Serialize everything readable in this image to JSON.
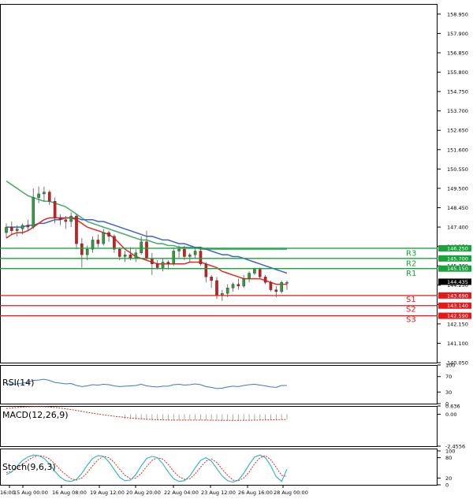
{
  "chart_data": [
    {
      "type": "candlestick",
      "y_ticks": [
        "158.950",
        "157.900",
        "156.850",
        "155.800",
        "154.750",
        "153.700",
        "152.650",
        "151.600",
        "150.550",
        "149.500",
        "148.450",
        "147.400",
        "146.350",
        "145.300",
        "144.250",
        "143.200",
        "142.150",
        "141.100",
        "140.050"
      ],
      "x_ticks": [
        "16:00",
        "15 Aug 00:00",
        "16 Aug 08:00",
        "19 Aug 12:00",
        "20 Aug 20:00",
        "22 Aug 04:00",
        "23 Aug 12:00",
        "26 Aug 16:00",
        "28 Aug 00:00"
      ],
      "ylim": [
        140.05,
        159.5
      ],
      "ohlc": [
        [
          147.1,
          147.6,
          146.8,
          147.4
        ],
        [
          147.4,
          147.7,
          147.0,
          147.2
        ],
        [
          147.2,
          147.5,
          146.9,
          147.3
        ],
        [
          147.3,
          147.6,
          147.0,
          147.5
        ],
        [
          147.5,
          147.8,
          147.2,
          147.4
        ],
        [
          147.4,
          149.5,
          147.3,
          149.0
        ],
        [
          149.0,
          149.6,
          148.7,
          149.2
        ],
        [
          149.2,
          149.6,
          148.8,
          149.3
        ],
        [
          149.3,
          149.4,
          148.6,
          148.8
        ],
        [
          148.8,
          149.0,
          147.6,
          147.9
        ],
        [
          147.9,
          148.1,
          147.5,
          147.8
        ],
        [
          147.8,
          148.0,
          147.3,
          147.7
        ],
        [
          147.7,
          148.2,
          147.4,
          148.0
        ],
        [
          148.0,
          148.1,
          146.2,
          146.5
        ],
        [
          146.5,
          146.8,
          145.2,
          145.9
        ],
        [
          145.9,
          146.4,
          145.6,
          146.2
        ],
        [
          146.2,
          146.9,
          146.0,
          146.7
        ],
        [
          146.7,
          147.0,
          146.3,
          146.5
        ],
        [
          146.5,
          147.3,
          146.4,
          147.1
        ],
        [
          147.1,
          147.2,
          146.6,
          146.9
        ],
        [
          146.9,
          147.0,
          146.0,
          146.2
        ],
        [
          146.2,
          146.3,
          145.6,
          145.8
        ],
        [
          145.8,
          146.1,
          145.5,
          145.9
        ],
        [
          145.9,
          146.3,
          145.6,
          145.7
        ],
        [
          145.7,
          146.2,
          145.5,
          146.0
        ],
        [
          146.0,
          146.9,
          145.9,
          146.6
        ],
        [
          146.6,
          147.2,
          145.6,
          145.7
        ],
        [
          145.7,
          146.0,
          144.8,
          145.4
        ],
        [
          145.4,
          145.6,
          145.1,
          145.2
        ],
        [
          145.2,
          145.7,
          145.0,
          145.5
        ],
        [
          145.5,
          145.6,
          145.1,
          145.4
        ],
        [
          145.4,
          146.3,
          145.3,
          146.1
        ],
        [
          146.1,
          146.4,
          145.7,
          146.2
        ],
        [
          146.2,
          146.4,
          145.6,
          145.8
        ],
        [
          145.8,
          146.0,
          145.5,
          145.9
        ],
        [
          145.9,
          146.3,
          145.7,
          146.1
        ],
        [
          146.1,
          146.3,
          145.3,
          145.4
        ],
        [
          145.4,
          145.5,
          144.4,
          144.7
        ],
        [
          144.7,
          144.8,
          144.1,
          144.5
        ],
        [
          144.5,
          144.7,
          143.5,
          143.7
        ],
        [
          143.7,
          144.0,
          143.4,
          143.8
        ],
        [
          143.8,
          144.3,
          143.6,
          144.1
        ],
        [
          144.1,
          144.4,
          143.9,
          144.3
        ],
        [
          144.3,
          144.6,
          144.0,
          144.2
        ],
        [
          144.2,
          144.8,
          144.1,
          144.6
        ],
        [
          144.6,
          145.0,
          144.4,
          144.9
        ],
        [
          144.9,
          145.2,
          144.8,
          145.1
        ],
        [
          145.1,
          145.2,
          144.6,
          144.7
        ],
        [
          144.7,
          144.8,
          144.3,
          144.4
        ],
        [
          144.4,
          144.5,
          143.9,
          144.0
        ],
        [
          144.0,
          144.2,
          143.6,
          143.9
        ],
        [
          143.9,
          144.5,
          143.8,
          144.4
        ],
        [
          144.4,
          144.5,
          144.0,
          144.4
        ]
      ],
      "ma_red": [
        146.8,
        147.0,
        147.1,
        147.1,
        147.2,
        147.4,
        147.6,
        147.8,
        147.9,
        147.9,
        147.9,
        147.9,
        147.9,
        147.8,
        147.6,
        147.4,
        147.3,
        147.2,
        147.1,
        147.0,
        146.8,
        146.5,
        146.2,
        146.0,
        145.8,
        145.7,
        145.6,
        145.5,
        145.4,
        145.4,
        145.4,
        145.4,
        145.4,
        145.4,
        145.5,
        145.5,
        145.5,
        145.4,
        145.3,
        145.2,
        145.0,
        144.9,
        144.8,
        144.7,
        144.6,
        144.6,
        144.6,
        144.6,
        144.5,
        144.4,
        144.3,
        144.3,
        144.3
      ],
      "ma_blue": [
        147.4,
        147.4,
        147.4,
        147.4,
        147.5,
        147.5,
        147.6,
        147.6,
        147.7,
        147.8,
        147.8,
        147.9,
        147.9,
        147.9,
        147.8,
        147.8,
        147.8,
        147.7,
        147.7,
        147.6,
        147.5,
        147.4,
        147.3,
        147.2,
        147.1,
        147.0,
        146.9,
        146.9,
        146.8,
        146.7,
        146.7,
        146.6,
        146.5,
        146.5,
        146.4,
        146.3,
        146.3,
        146.2,
        146.1,
        146.0,
        145.9,
        145.9,
        145.8,
        145.8,
        145.7,
        145.6,
        145.5,
        145.4,
        145.3,
        145.2,
        145.1,
        145.0,
        144.9
      ],
      "ma_green": [
        149.9,
        149.7,
        149.5,
        149.3,
        149.1,
        149.0,
        148.9,
        148.8,
        148.8,
        148.7,
        148.6,
        148.5,
        148.3,
        148.1,
        147.9,
        147.7,
        147.6,
        147.5,
        147.4,
        147.3,
        147.2,
        147.1,
        147.0,
        146.9,
        146.8,
        146.7,
        146.7,
        146.6,
        146.5,
        146.5,
        146.4,
        146.4,
        146.3,
        146.3,
        146.3,
        146.3,
        146.2,
        146.2,
        146.2,
        146.2,
        146.2,
        146.2,
        146.2,
        146.2,
        146.2,
        146.2,
        146.2,
        146.2,
        146.2,
        146.2,
        146.2,
        146.2,
        146.2
      ],
      "levels": [
        {
          "name": "R3",
          "value": 146.25,
          "label": "146.250"
        },
        {
          "name": "R2",
          "value": 145.7,
          "label": "145.700"
        },
        {
          "name": "R1",
          "value": 145.15,
          "label": "145.150"
        },
        {
          "name": "S1",
          "value": 143.69,
          "label": "143.690"
        },
        {
          "name": "S2",
          "value": 143.14,
          "label": "143.140"
        },
        {
          "name": "S3",
          "value": 142.59,
          "label": "142.590"
        }
      ],
      "current_price": "144.435",
      "colors": {
        "up": "#2e9d3a",
        "down": "#d21c1c",
        "ma_red": "#e8261e",
        "ma_blue": "#3d63c8",
        "ma_green": "#4cae6e",
        "resistance": "#19a33a",
        "support": "#e21a1a"
      }
    },
    {
      "type": "line",
      "name": "RSI(14)",
      "y_ticks": [
        "100",
        "70",
        "30",
        "0"
      ],
      "ylim": [
        0,
        100
      ],
      "values": [
        52,
        50,
        51,
        53,
        55,
        60,
        61,
        63,
        60,
        55,
        53,
        51,
        52,
        47,
        44,
        46,
        49,
        48,
        50,
        49,
        46,
        44,
        45,
        46,
        47,
        50,
        46,
        44,
        43,
        45,
        45,
        49,
        50,
        48,
        49,
        51,
        49,
        44,
        42,
        39,
        40,
        43,
        45,
        44,
        47,
        49,
        50,
        48,
        46,
        43,
        42,
        47,
        47
      ],
      "color": "#3a78d0"
    },
    {
      "type": "bar",
      "name": "MACD(12,26,9)",
      "y_ticks": [
        "0.636",
        "0.00",
        "-2.4556"
      ],
      "ylim": [
        -2.4556,
        0.636
      ],
      "histogram_start": 22,
      "values": [
        0.5,
        0.55,
        0.58,
        0.6,
        0.6,
        0.62,
        0.6,
        0.58,
        0.5,
        0.42,
        0.35,
        0.25,
        0.15,
        0.05,
        -0.05,
        -0.12,
        -0.18,
        -0.2,
        -0.22,
        -0.25,
        -0.28,
        -0.32,
        -0.36,
        -0.38,
        -0.4,
        -0.42,
        -0.44,
        -0.45,
        -0.45,
        -0.46,
        -0.46,
        -0.46,
        -0.45,
        -0.45,
        -0.44,
        -0.43,
        -0.44,
        -0.46,
        -0.47,
        -0.48,
        -0.48,
        -0.48,
        -0.47,
        -0.46,
        -0.45,
        -0.43,
        -0.42,
        -0.41,
        -0.41,
        -0.41,
        -0.4,
        -0.39,
        -0.38
      ],
      "signal": [
        0.45,
        0.48,
        0.52,
        0.55,
        0.57,
        0.58,
        0.58,
        0.58,
        0.56,
        0.52,
        0.47,
        0.42,
        0.36,
        0.3,
        0.22,
        0.15,
        0.08,
        0.02,
        -0.04,
        -0.1,
        -0.15,
        -0.2,
        -0.25,
        -0.29,
        -0.32,
        -0.35,
        -0.38,
        -0.4,
        -0.42,
        -0.43,
        -0.44,
        -0.45,
        -0.45,
        -0.45,
        -0.45,
        -0.45,
        -0.45,
        -0.45,
        -0.46,
        -0.46,
        -0.47,
        -0.47,
        -0.47,
        -0.47,
        -0.46,
        -0.46,
        -0.45,
        -0.44,
        -0.43,
        -0.43,
        -0.42,
        -0.41,
        -0.4
      ],
      "color": "#c83030"
    },
    {
      "type": "line",
      "name": "Stoch(9,6,3)",
      "y_ticks": [
        "100",
        "80",
        "20",
        "0"
      ],
      "ylim": [
        0,
        100
      ],
      "k": [
        30,
        38,
        55,
        72,
        82,
        88,
        86,
        78,
        62,
        40,
        22,
        12,
        10,
        16,
        34,
        58,
        78,
        86,
        84,
        68,
        45,
        22,
        12,
        14,
        30,
        56,
        78,
        84,
        80,
        62,
        38,
        18,
        10,
        12,
        26,
        50,
        72,
        80,
        70,
        48,
        26,
        12,
        8,
        14,
        34,
        60,
        82,
        88,
        80,
        56,
        24,
        10,
        46
      ],
      "d": [
        36,
        40,
        48,
        60,
        72,
        82,
        86,
        84,
        76,
        62,
        44,
        30,
        18,
        14,
        20,
        36,
        56,
        74,
        84,
        80,
        66,
        46,
        28,
        18,
        20,
        34,
        54,
        72,
        80,
        76,
        60,
        40,
        24,
        16,
        18,
        32,
        52,
        70,
        76,
        66,
        46,
        28,
        14,
        12,
        20,
        38,
        62,
        80,
        86,
        74,
        52,
        28,
        24
      ],
      "colors": {
        "k": "#2ab3b8",
        "d": "#e02626"
      }
    }
  ]
}
